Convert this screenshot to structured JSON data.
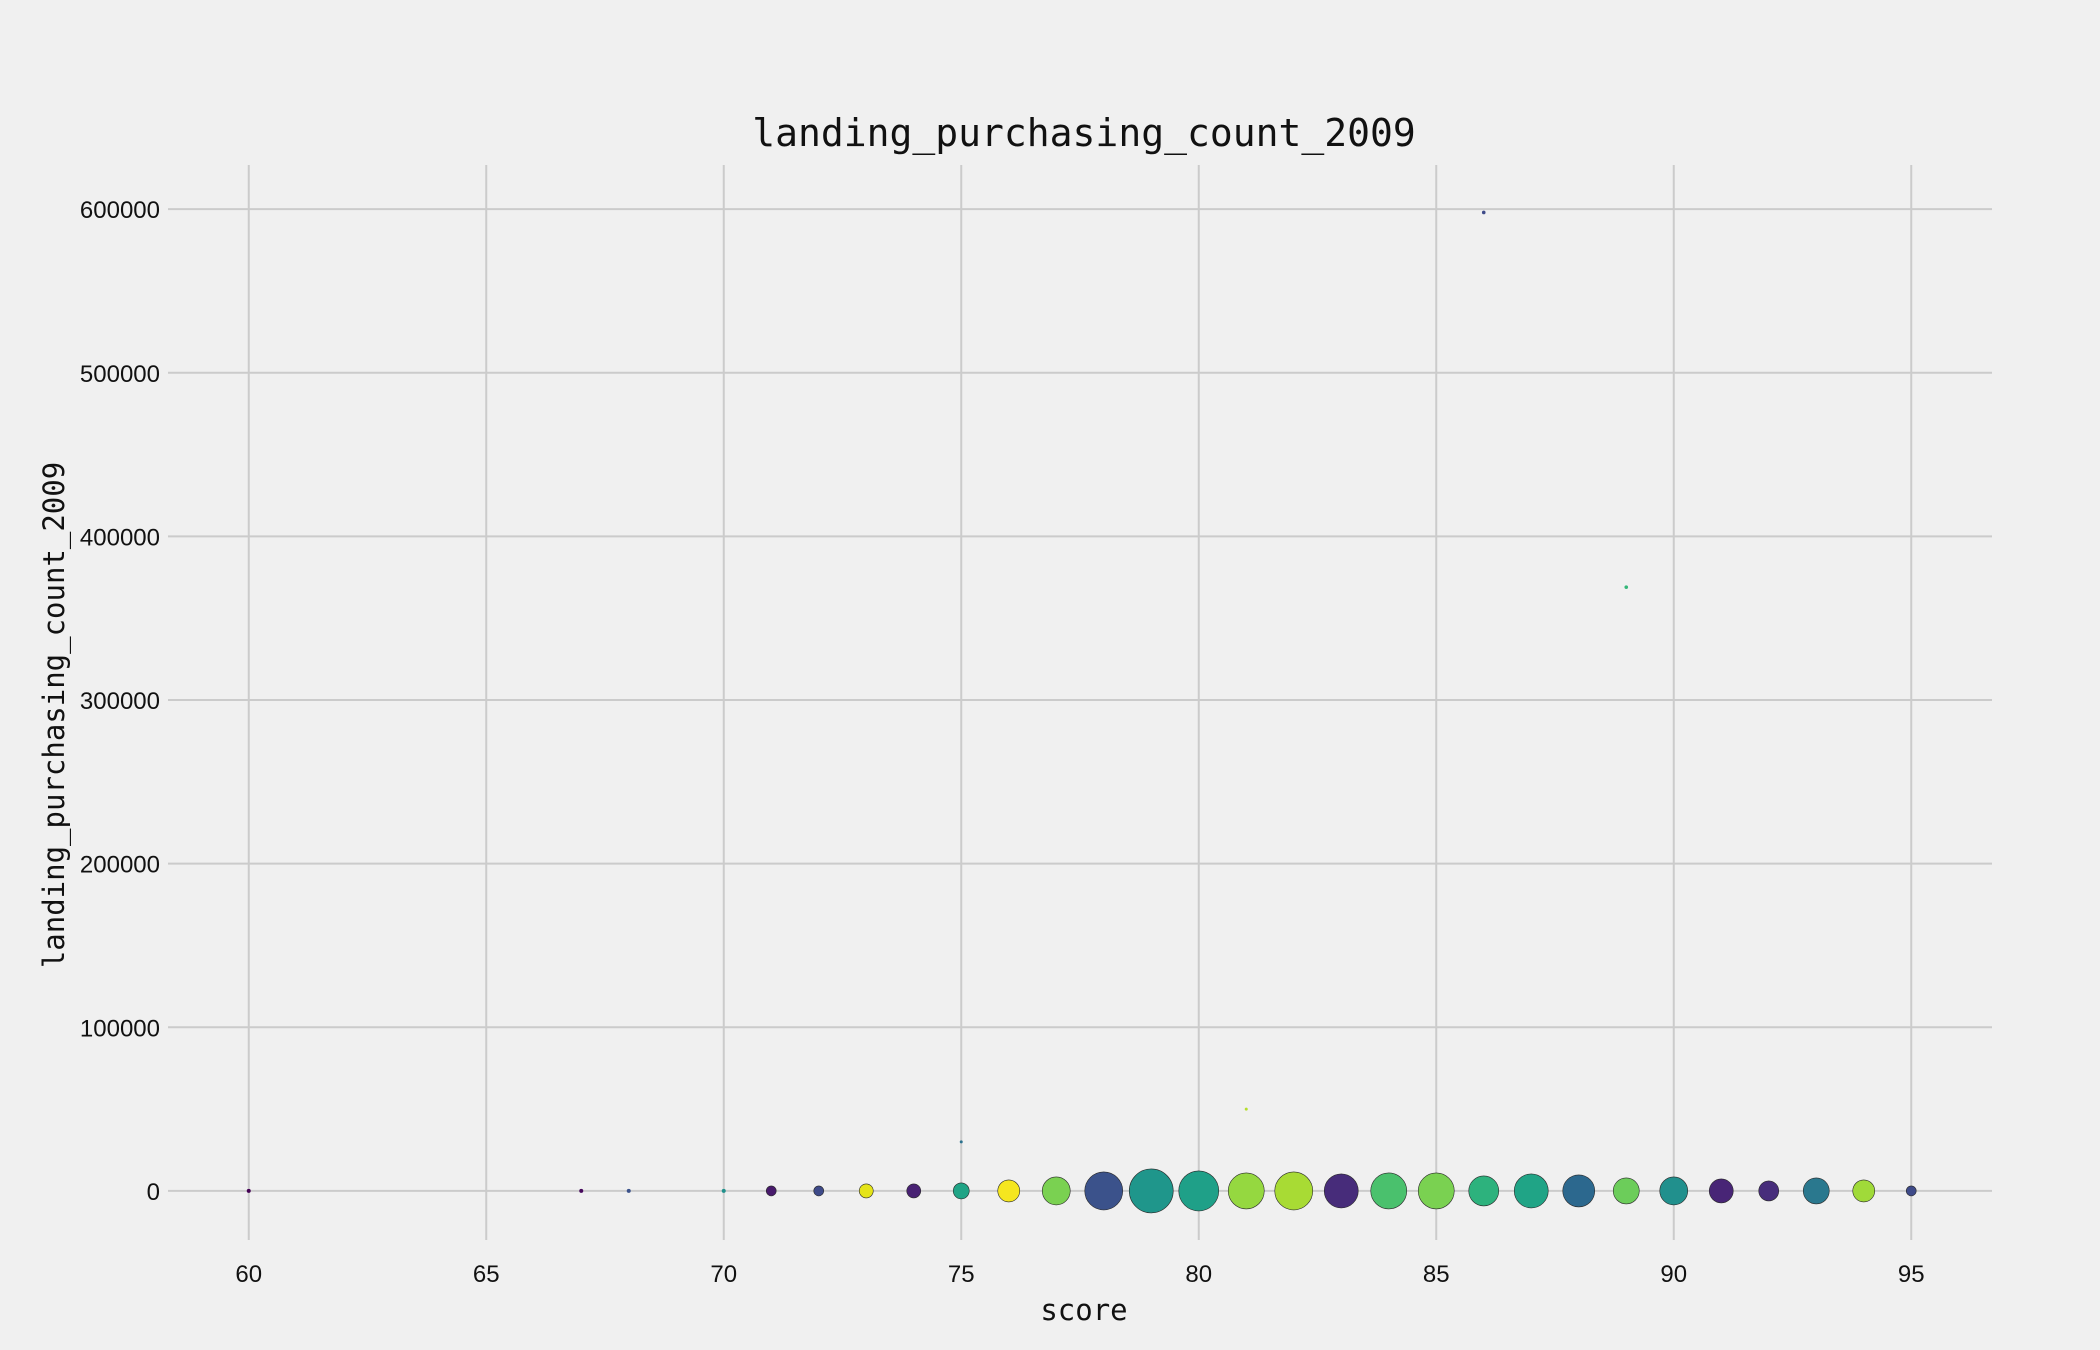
{
  "chart_data": {
    "type": "scatter",
    "title": "landing_purchasing_count_2009",
    "xlabel": "score",
    "ylabel": "landing_purchasing_count_2009",
    "xlim": [
      58.3,
      96.7
    ],
    "ylim": [
      -30000,
      627000
    ],
    "xticks": [
      60,
      65,
      70,
      75,
      80,
      85,
      90,
      95
    ],
    "yticks": [
      0,
      100000,
      200000,
      300000,
      400000,
      500000,
      600000
    ],
    "grid": true,
    "background": "#f0f0f0",
    "points": [
      {
        "x": 60,
        "y": 0,
        "size": 2,
        "color": "#440154"
      },
      {
        "x": 67,
        "y": 0,
        "size": 2,
        "color": "#46085c"
      },
      {
        "x": 68,
        "y": 0,
        "size": 2,
        "color": "#3b528b"
      },
      {
        "x": 70,
        "y": 0,
        "size": 2,
        "color": "#21918c"
      },
      {
        "x": 71,
        "y": 0,
        "size": 5,
        "color": "#481a6c"
      },
      {
        "x": 72,
        "y": 0,
        "size": 5,
        "color": "#3e4a89"
      },
      {
        "x": 73,
        "y": 0,
        "size": 7,
        "color": "#e5e419"
      },
      {
        "x": 74,
        "y": 0,
        "size": 7,
        "color": "#482173"
      },
      {
        "x": 75,
        "y": 0,
        "size": 8,
        "color": "#20a486"
      },
      {
        "x": 75,
        "y": 30000,
        "size": 1.5,
        "color": "#2c728e"
      },
      {
        "x": 76,
        "y": 0,
        "size": 11,
        "color": "#f5e61f"
      },
      {
        "x": 77,
        "y": 0,
        "size": 14,
        "color": "#7ad151"
      },
      {
        "x": 78,
        "y": 0,
        "size": 19,
        "color": "#3b528b"
      },
      {
        "x": 79,
        "y": 0,
        "size": 22,
        "color": "#1f968b"
      },
      {
        "x": 80,
        "y": 0,
        "size": 20,
        "color": "#1fa088"
      },
      {
        "x": 81,
        "y": 0,
        "size": 18,
        "color": "#95d840"
      },
      {
        "x": 81,
        "y": 50000,
        "size": 1.5,
        "color": "#b5de2b"
      },
      {
        "x": 82,
        "y": 0,
        "size": 19,
        "color": "#a8db34"
      },
      {
        "x": 83,
        "y": 0,
        "size": 17,
        "color": "#472c7a"
      },
      {
        "x": 84,
        "y": 0,
        "size": 18,
        "color": "#4ac16d"
      },
      {
        "x": 85,
        "y": 0,
        "size": 18,
        "color": "#7ad151"
      },
      {
        "x": 86,
        "y": 0,
        "size": 15,
        "color": "#2db27d"
      },
      {
        "x": 86,
        "y": 598000,
        "size": 1.8,
        "color": "#3e4a89"
      },
      {
        "x": 87,
        "y": 0,
        "size": 17,
        "color": "#20a486"
      },
      {
        "x": 88,
        "y": 0,
        "size": 16,
        "color": "#2c688e"
      },
      {
        "x": 89,
        "y": 0,
        "size": 13,
        "color": "#6ccd5a"
      },
      {
        "x": 89,
        "y": 369000,
        "size": 1.8,
        "color": "#35b779"
      },
      {
        "x": 90,
        "y": 0,
        "size": 14,
        "color": "#21908d"
      },
      {
        "x": 91,
        "y": 0,
        "size": 12,
        "color": "#482576"
      },
      {
        "x": 92,
        "y": 0,
        "size": 10,
        "color": "#472d7b"
      },
      {
        "x": 93,
        "y": 0,
        "size": 13,
        "color": "#2a788e"
      },
      {
        "x": 94,
        "y": 0,
        "size": 11,
        "color": "#a0da39"
      },
      {
        "x": 95,
        "y": 0,
        "size": 5,
        "color": "#3e4a89"
      }
    ]
  }
}
